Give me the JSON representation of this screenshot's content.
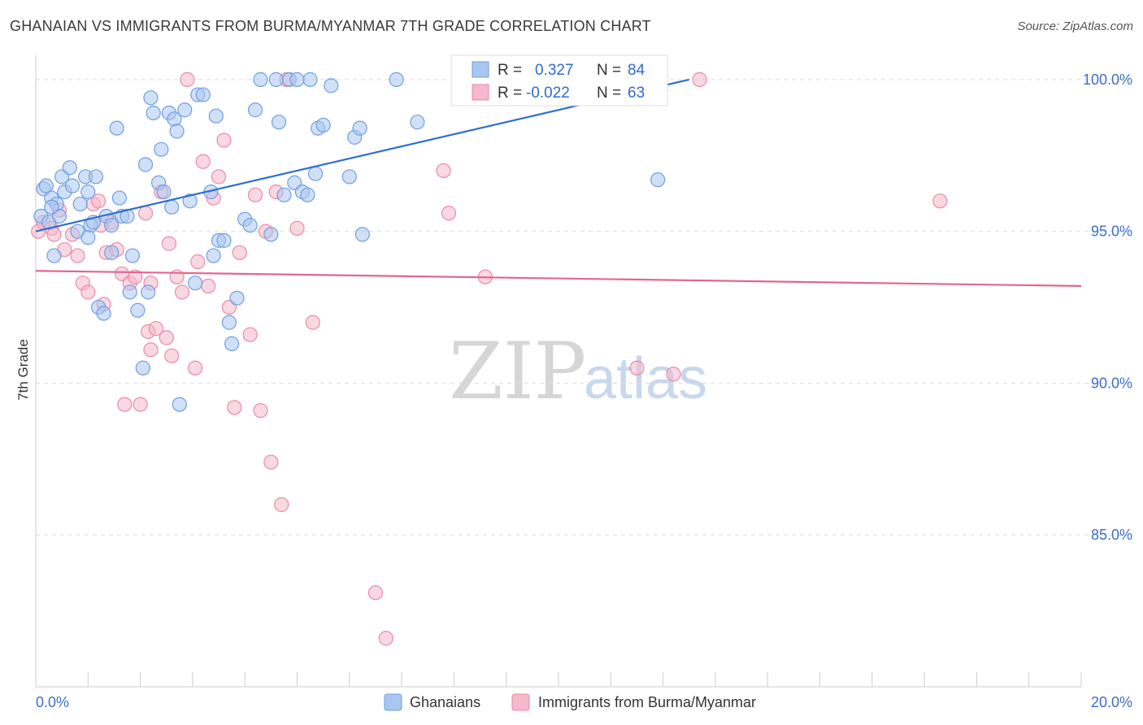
{
  "title": "GHANAIAN VS IMMIGRANTS FROM BURMA/MYANMAR 7TH GRADE CORRELATION CHART",
  "source": "Source: ZipAtlas.com",
  "watermark": {
    "zip": "ZIP",
    "atlas": "atlas"
  },
  "colors": {
    "blue_fill": "#a9c6f0",
    "blue_stroke": "#6f9fe0",
    "blue_line": "#2e6fd0",
    "pink_fill": "#f6b8cb",
    "pink_stroke": "#ea89a8",
    "pink_line": "#e3668f",
    "grid": "#dddddd",
    "axis_text": "#3b6fc4"
  },
  "legend": {
    "r_label": "R =",
    "n_label": "N =",
    "series": [
      {
        "name": "Ghanaians",
        "r": "0.327",
        "n": "84"
      },
      {
        "name": "Immigrants from Burma/Myanmar",
        "r": "-0.022",
        "n": "63"
      }
    ]
  },
  "chart_data": {
    "type": "scatter",
    "title": "GHANAIAN VS IMMIGRANTS FROM BURMA/MYANMAR 7TH GRADE CORRELATION CHART",
    "xlabel": "",
    "ylabel": "7th Grade",
    "xlim": [
      0,
      20
    ],
    "ylim": [
      80,
      100.8
    ],
    "x_tick_labels": [
      "0.0%",
      "20.0%"
    ],
    "y_ticks": [
      85,
      90,
      95,
      100
    ],
    "y_tick_labels": [
      "85.0%",
      "90.0%",
      "95.0%",
      "100.0%"
    ],
    "grid": true,
    "series": [
      {
        "name": "Ghanaians",
        "r": 0.327,
        "n": 84,
        "trend": {
          "x": [
            0.0,
            12.5
          ],
          "y": [
            95.0,
            100.0
          ]
        },
        "points": [
          [
            0.1,
            95.5
          ],
          [
            0.15,
            96.4
          ],
          [
            0.2,
            96.5
          ],
          [
            0.25,
            95.3
          ],
          [
            0.3,
            96.1
          ],
          [
            0.35,
            94.2
          ],
          [
            0.4,
            95.9
          ],
          [
            0.45,
            95.5
          ],
          [
            0.5,
            96.8
          ],
          [
            0.55,
            96.3
          ],
          [
            0.65,
            97.1
          ],
          [
            0.7,
            96.5
          ],
          [
            0.8,
            95.0
          ],
          [
            0.85,
            95.9
          ],
          [
            0.95,
            96.8
          ],
          [
            1.0,
            96.3
          ],
          [
            1.05,
            95.2
          ],
          [
            1.1,
            95.3
          ],
          [
            1.15,
            96.8
          ],
          [
            1.2,
            92.5
          ],
          [
            1.3,
            92.3
          ],
          [
            1.35,
            95.5
          ],
          [
            1.45,
            94.3
          ],
          [
            1.45,
            95.2
          ],
          [
            1.55,
            98.4
          ],
          [
            1.6,
            96.1
          ],
          [
            1.65,
            95.5
          ],
          [
            1.75,
            95.5
          ],
          [
            1.8,
            93.0
          ],
          [
            1.85,
            94.2
          ],
          [
            1.95,
            92.4
          ],
          [
            2.05,
            90.5
          ],
          [
            2.1,
            97.2
          ],
          [
            2.15,
            93.0
          ],
          [
            2.2,
            99.4
          ],
          [
            2.25,
            98.9
          ],
          [
            2.35,
            96.6
          ],
          [
            2.4,
            97.7
          ],
          [
            2.45,
            96.3
          ],
          [
            2.55,
            98.9
          ],
          [
            2.6,
            95.8
          ],
          [
            2.65,
            98.7
          ],
          [
            2.7,
            98.3
          ],
          [
            2.75,
            89.3
          ],
          [
            2.85,
            99.0
          ],
          [
            2.95,
            96.0
          ],
          [
            3.05,
            93.3
          ],
          [
            3.1,
            99.5
          ],
          [
            3.2,
            99.5
          ],
          [
            3.35,
            96.3
          ],
          [
            3.4,
            94.2
          ],
          [
            3.45,
            98.8
          ],
          [
            3.5,
            94.7
          ],
          [
            3.6,
            94.7
          ],
          [
            3.7,
            92.0
          ],
          [
            3.75,
            91.3
          ],
          [
            3.85,
            92.8
          ],
          [
            4.0,
            95.4
          ],
          [
            4.1,
            95.2
          ],
          [
            4.2,
            99.0
          ],
          [
            4.3,
            100.0
          ],
          [
            4.5,
            94.9
          ],
          [
            4.6,
            100.0
          ],
          [
            4.65,
            98.6
          ],
          [
            4.75,
            96.2
          ],
          [
            4.85,
            100.0
          ],
          [
            4.95,
            96.6
          ],
          [
            5.0,
            100.0
          ],
          [
            5.1,
            96.3
          ],
          [
            5.2,
            96.2
          ],
          [
            5.25,
            100.0
          ],
          [
            5.35,
            96.9
          ],
          [
            5.4,
            98.4
          ],
          [
            5.5,
            98.5
          ],
          [
            5.65,
            99.8
          ],
          [
            6.0,
            96.8
          ],
          [
            6.1,
            98.1
          ],
          [
            6.2,
            98.4
          ],
          [
            6.25,
            94.9
          ],
          [
            6.9,
            100.0
          ],
          [
            7.3,
            98.6
          ],
          [
            11.9,
            96.7
          ],
          [
            0.3,
            95.8
          ],
          [
            1.0,
            94.8
          ]
        ]
      },
      {
        "name": "Immigrants from Burma/Myanmar",
        "r": -0.022,
        "n": 63,
        "trend": {
          "x": [
            0.0,
            20.0
          ],
          "y": [
            93.7,
            93.2
          ]
        },
        "points": [
          [
            0.05,
            95.0
          ],
          [
            0.15,
            95.3
          ],
          [
            0.3,
            95.1
          ],
          [
            0.45,
            95.7
          ],
          [
            0.55,
            94.4
          ],
          [
            0.7,
            94.9
          ],
          [
            0.8,
            94.2
          ],
          [
            0.9,
            93.3
          ],
          [
            1.0,
            93.0
          ],
          [
            1.1,
            95.9
          ],
          [
            1.2,
            96.0
          ],
          [
            1.3,
            92.6
          ],
          [
            1.35,
            94.3
          ],
          [
            1.45,
            95.3
          ],
          [
            1.55,
            94.4
          ],
          [
            1.65,
            93.6
          ],
          [
            1.7,
            89.3
          ],
          [
            1.8,
            93.3
          ],
          [
            1.9,
            93.5
          ],
          [
            2.0,
            89.3
          ],
          [
            2.1,
            95.6
          ],
          [
            2.15,
            91.7
          ],
          [
            2.2,
            91.1
          ],
          [
            2.3,
            91.8
          ],
          [
            2.4,
            96.3
          ],
          [
            2.5,
            91.5
          ],
          [
            2.55,
            94.6
          ],
          [
            2.6,
            90.9
          ],
          [
            2.7,
            93.5
          ],
          [
            2.8,
            93.0
          ],
          [
            2.9,
            100.0
          ],
          [
            3.05,
            90.5
          ],
          [
            3.1,
            94.0
          ],
          [
            3.2,
            97.3
          ],
          [
            3.3,
            93.2
          ],
          [
            3.4,
            96.1
          ],
          [
            3.5,
            96.8
          ],
          [
            3.6,
            98.0
          ],
          [
            3.7,
            92.5
          ],
          [
            3.8,
            89.2
          ],
          [
            3.9,
            94.3
          ],
          [
            4.1,
            91.6
          ],
          [
            4.2,
            96.2
          ],
          [
            4.3,
            89.1
          ],
          [
            4.4,
            95.0
          ],
          [
            4.5,
            87.4
          ],
          [
            4.6,
            96.3
          ],
          [
            4.7,
            86.0
          ],
          [
            4.8,
            100.0
          ],
          [
            5.0,
            95.1
          ],
          [
            5.3,
            92.0
          ],
          [
            6.5,
            83.1
          ],
          [
            6.7,
            81.6
          ],
          [
            7.8,
            97.0
          ],
          [
            7.9,
            95.6
          ],
          [
            8.6,
            93.5
          ],
          [
            11.5,
            90.5
          ],
          [
            12.2,
            90.3
          ],
          [
            12.7,
            100.0
          ],
          [
            17.3,
            96.0
          ],
          [
            0.35,
            94.9
          ],
          [
            1.25,
            95.2
          ],
          [
            2.2,
            93.3
          ]
        ]
      }
    ]
  }
}
